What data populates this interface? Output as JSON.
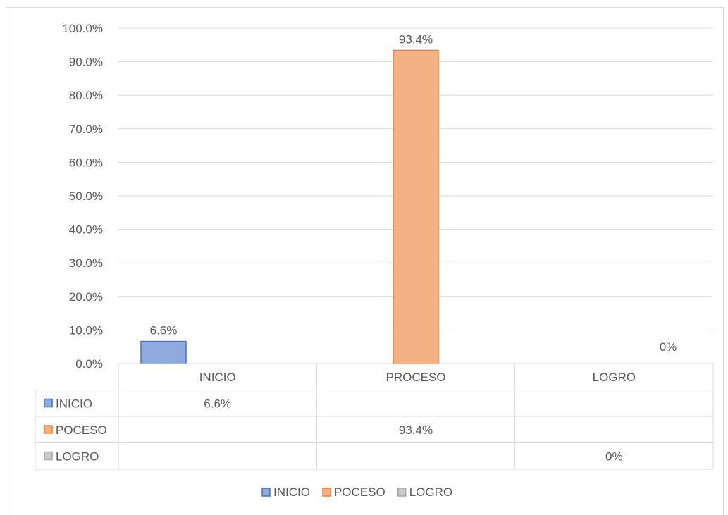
{
  "chart_data": {
    "type": "bar",
    "categories": [
      "INICIO",
      "PROCESO",
      "LOGRO"
    ],
    "series": [
      {
        "name": "INICIO",
        "values": [
          6.6,
          null,
          null
        ],
        "labels": [
          "6.6%",
          "",
          ""
        ],
        "color": "#8faadc",
        "border": "#4472c4"
      },
      {
        "name": "POCESO",
        "values": [
          null,
          93.4,
          null
        ],
        "labels": [
          "",
          "93.4%",
          ""
        ],
        "color": "#f4b183",
        "border": "#ed7d31"
      },
      {
        "name": "LOGRO",
        "values": [
          null,
          null,
          0
        ],
        "labels": [
          "",
          "",
          "0%"
        ],
        "color": "#c9c9c9",
        "border": "#a5a5a5"
      }
    ],
    "y_ticks": [
      "0.0%",
      "10.0%",
      "20.0%",
      "30.0%",
      "40.0%",
      "50.0%",
      "60.0%",
      "70.0%",
      "80.0%",
      "90.0%",
      "100.0%"
    ],
    "ylim": [
      0,
      100
    ],
    "grid": true,
    "data_table": true,
    "legend_position": "bottom"
  }
}
